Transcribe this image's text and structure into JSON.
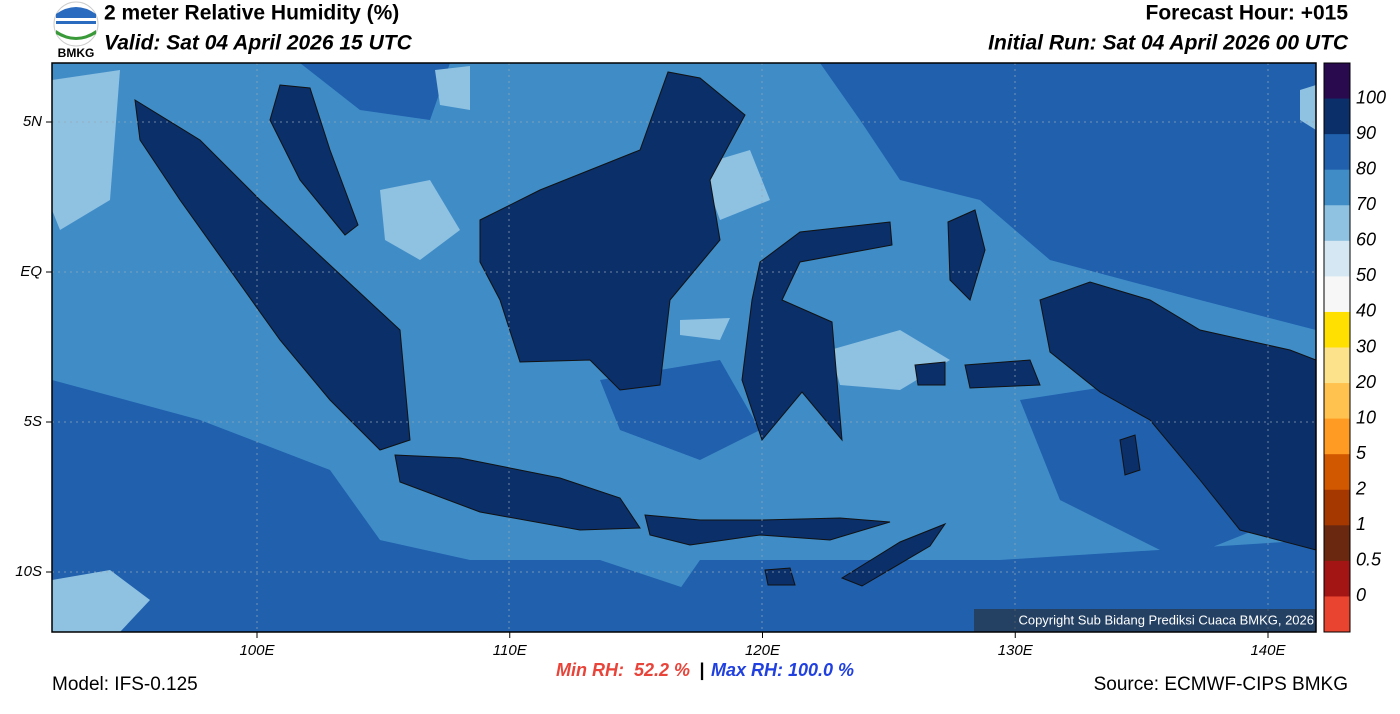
{
  "header": {
    "title": "2 meter Relative Humidity (%)",
    "valid": "Valid: Sat 04 April 2026 15 UTC",
    "forecast_hour": "Forecast Hour: +015",
    "initial_run": "Initial Run: Sat 04 April 2026 00 UTC",
    "logo_text": "BMKG"
  },
  "map": {
    "lat_labels": [
      "5N",
      "EQ",
      "5S",
      "10S"
    ],
    "lon_labels": [
      "100E",
      "110E",
      "120E",
      "130E",
      "140E"
    ],
    "copyright": "Copyright Sub Bidang Prediksi Cuaca BMKG, 2026"
  },
  "colorbar": {
    "labels": [
      "100",
      "90",
      "80",
      "70",
      "60",
      "50",
      "40",
      "30",
      "20",
      "10",
      "5",
      "2",
      "1",
      "0.5",
      "0"
    ],
    "colors": [
      "#2a0a4f",
      "#0b2f68",
      "#2060ad",
      "#3f8cc7",
      "#8fc1e1",
      "#d5e7f2",
      "#f7f7f7",
      "#ffe000",
      "#fde28c",
      "#ffc24e",
      "#ff9b22",
      "#d25800",
      "#a43800",
      "#6b2810",
      "#a31414",
      "#e8442f"
    ]
  },
  "footer": {
    "model": "Model: IFS-0.125",
    "min_rh": "Min RH:  52.2 %",
    "separator": "|",
    "max_rh": "Max RH: 100.0 %",
    "source": "Source: ECMWF-CIPS BMKG"
  }
}
